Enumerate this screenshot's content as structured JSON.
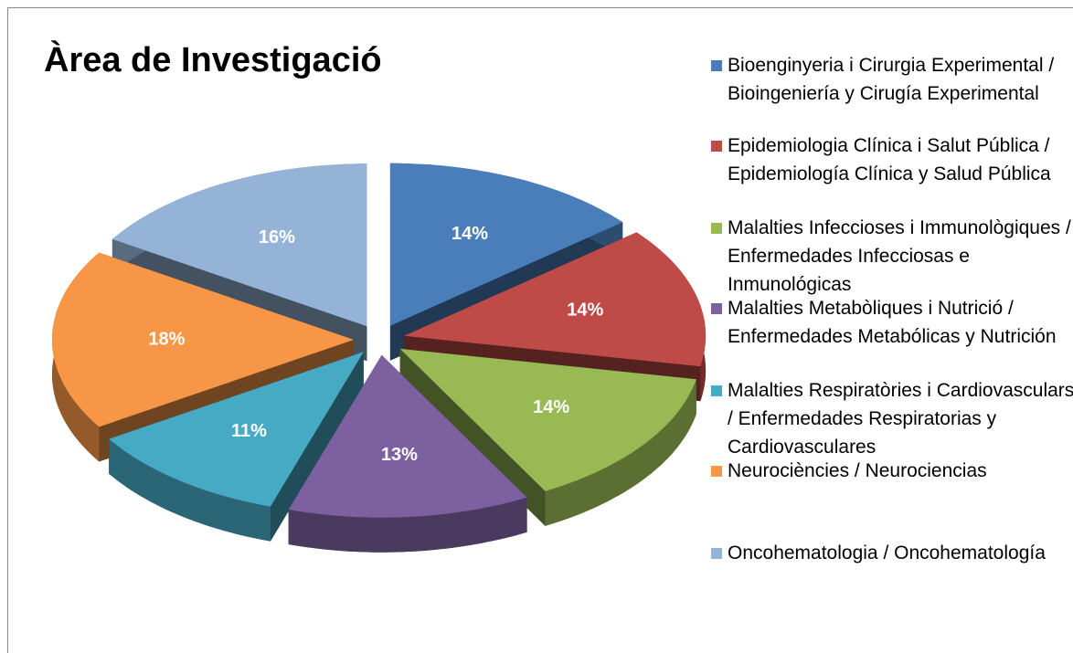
{
  "chart_data": {
    "type": "pie3d",
    "title": "Àrea de Investigació",
    "categories": [
      "Bioenginyeria i Cirurgia Experimental / Bioingeniería y Cirugía Experimental",
      "Epidemiologia Clínica i Salut Pública / Epidemiología Clínica y Salud Pública",
      "Malalties Infeccioses i Immunològiques / Enfermedades Infecciosas e Inmunológicas",
      "Malalties Metabòliques i Nutrició / Enfermedades Metabólicas y Nutrición",
      "Malalties Respiratòries i Cardiovasculars / Enfermedades Respiratorias y Cardiovasculares",
      "Neurociències / Neurociencias",
      "Oncohematologia / Oncohematología"
    ],
    "values": [
      14,
      14,
      14,
      13,
      11,
      18,
      16
    ],
    "value_labels": [
      "14%",
      "14%",
      "14%",
      "13%",
      "11%",
      "18%",
      "16%"
    ],
    "colors": [
      "#4a7ebb",
      "#be4b48",
      "#98b954",
      "#7d60a0",
      "#46aac5",
      "#f79646",
      "#95b3d7"
    ]
  }
}
